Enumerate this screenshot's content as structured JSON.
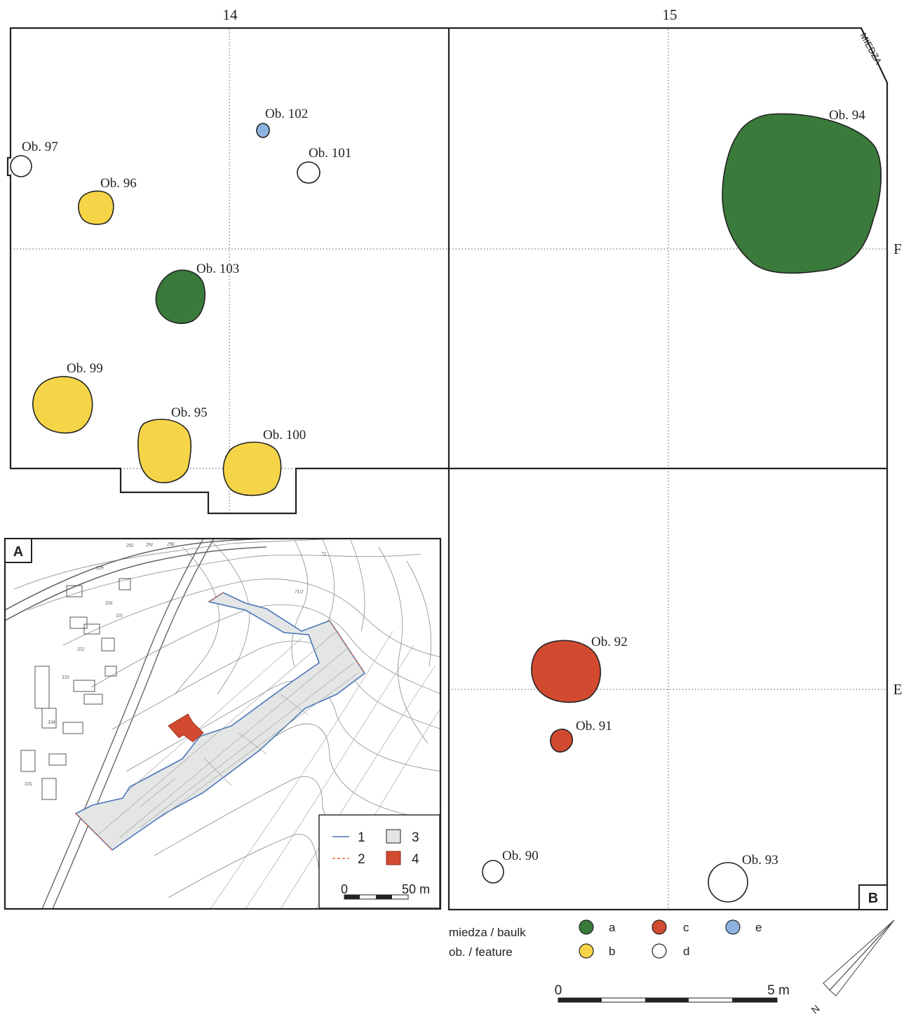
{
  "grid": {
    "columns": [
      "14",
      "15"
    ],
    "rows": [
      "F",
      "E"
    ],
    "baulk_label": "MIEDZA"
  },
  "features": [
    {
      "id": "Ob. 94",
      "category": "a"
    },
    {
      "id": "Ob. 96",
      "category": "b"
    },
    {
      "id": "Ob. 99",
      "category": "b"
    },
    {
      "id": "Ob. 95",
      "category": "b"
    },
    {
      "id": "Ob. 100",
      "category": "b"
    },
    {
      "id": "Ob. 103",
      "category": "a"
    },
    {
      "id": "Ob. 102",
      "category": "e"
    },
    {
      "id": "Ob. 97",
      "category": "d"
    },
    {
      "id": "Ob. 101",
      "category": "d"
    },
    {
      "id": "Ob. 92",
      "category": "c"
    },
    {
      "id": "Ob. 91",
      "category": "c"
    },
    {
      "id": "Ob. 90",
      "category": "d"
    },
    {
      "id": "Ob. 93",
      "category": "d"
    }
  ],
  "legend": {
    "row1": "miedza / baulk",
    "row2": "ob. / feature",
    "items": [
      {
        "key": "a",
        "color": "#3a7a3a"
      },
      {
        "key": "b",
        "color": "#f5d547"
      },
      {
        "key": "c",
        "color": "#d24a30"
      },
      {
        "key": "d",
        "color": "#ffffff"
      },
      {
        "key": "e",
        "color": "#8fb3e0"
      }
    ]
  },
  "scale": {
    "start": "0",
    "end": "5 m"
  },
  "north": "N",
  "panel_labels": {
    "inset": "A",
    "main": "B"
  },
  "inset": {
    "legend": [
      {
        "key": "1",
        "color": "#4a74b8"
      },
      {
        "key": "2",
        "color": "#e06a3a"
      },
      {
        "key": "3",
        "color": "#e2e2e2"
      },
      {
        "key": "4",
        "color": "#d24a30"
      }
    ],
    "scale": {
      "start": "0",
      "end": "50 m"
    },
    "parcels": [
      "329",
      "331",
      "332",
      "333",
      "334",
      "335",
      "356",
      "292",
      "291",
      "290",
      "72",
      "71/2"
    ]
  },
  "colors": {
    "green": "#3a7a3a",
    "yellow": "#f5d547",
    "red": "#d24a30",
    "blue": "#8fb3e0",
    "survey_area": "#e4e6e6"
  }
}
